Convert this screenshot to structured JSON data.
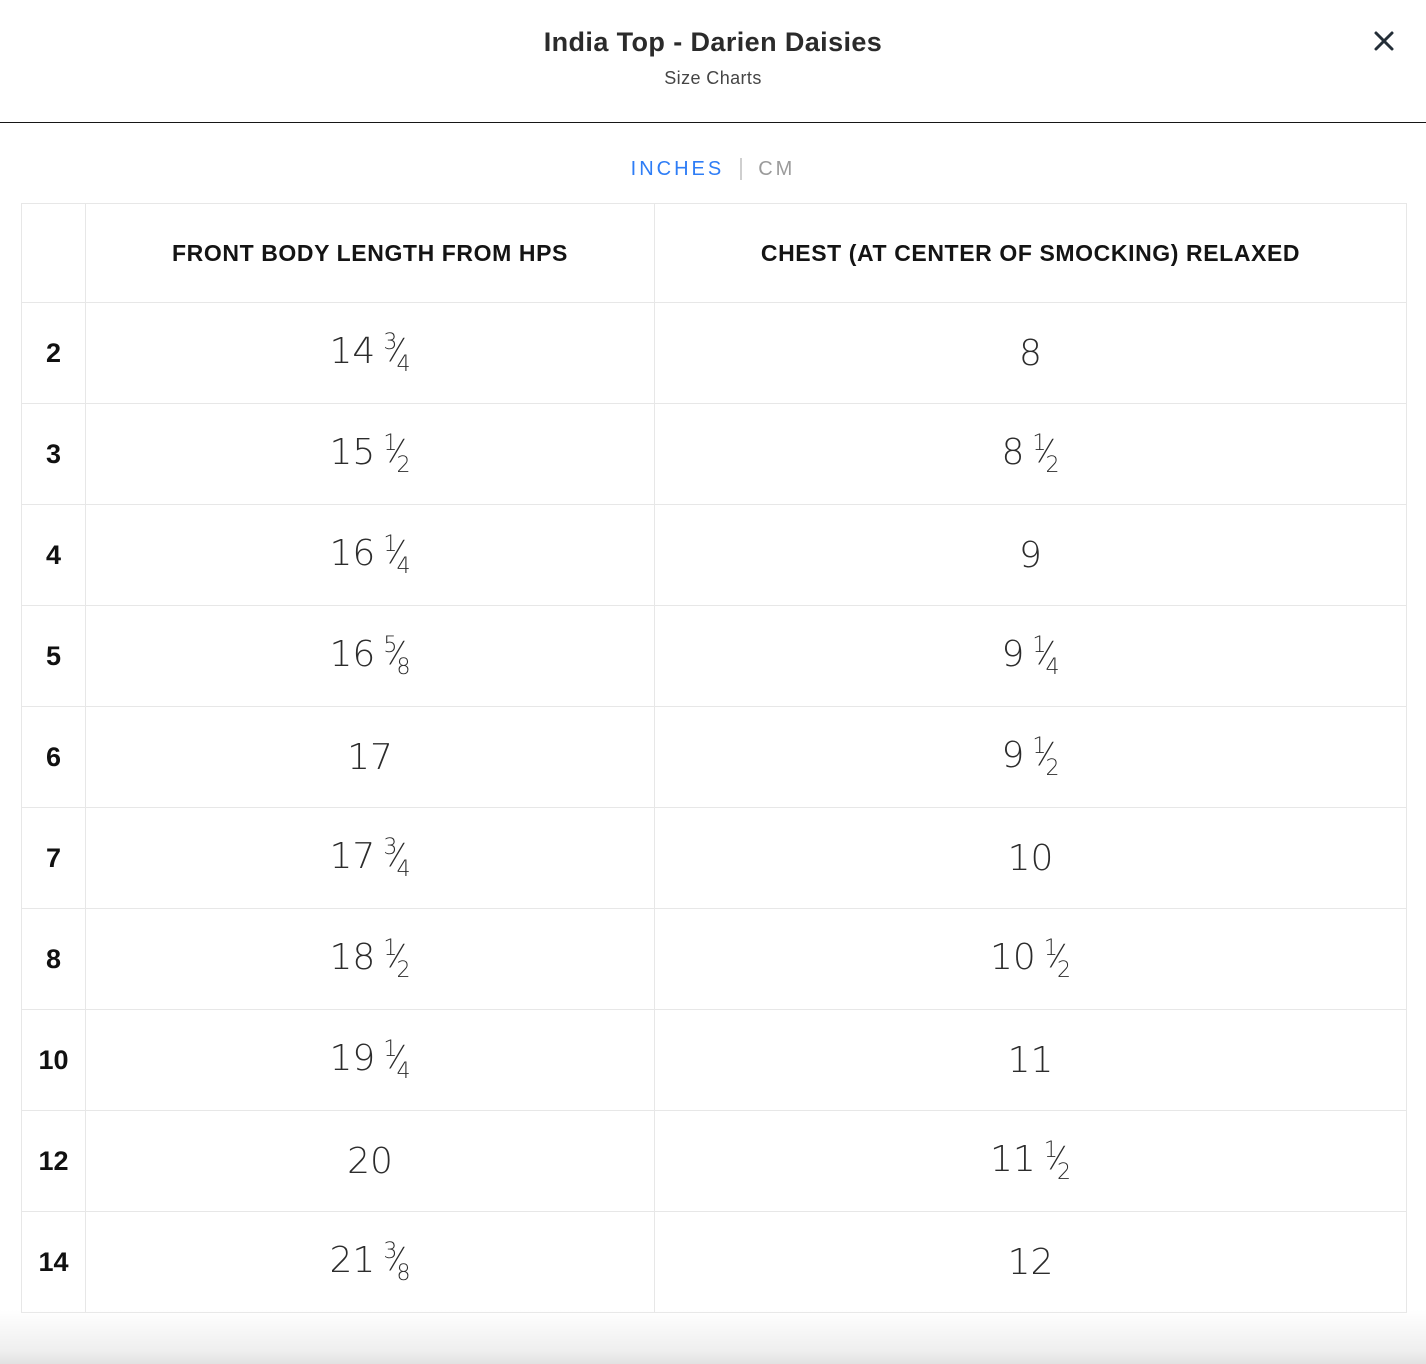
{
  "modal": {
    "title": "India Top - Darien Daisies",
    "subtitle": "Size Charts",
    "close_icon": "x-icon"
  },
  "unit_toggle": {
    "options": [
      {
        "label": "INCHES",
        "active": true
      },
      {
        "label": "CM",
        "active": false
      }
    ],
    "active_color": "#2e7df6",
    "inactive_color": "#9b9b9b"
  },
  "table": {
    "columns": [
      "",
      "FRONT BODY LENGTH FROM HPS",
      "CHEST (AT CENTER OF SMOCKING) RELAXED"
    ],
    "rows": [
      {
        "size": "2",
        "front_body_length": "14 3/4",
        "chest": "8"
      },
      {
        "size": "3",
        "front_body_length": "15 1/2",
        "chest": "8 1/2"
      },
      {
        "size": "4",
        "front_body_length": "16 1/4",
        "chest": "9"
      },
      {
        "size": "5",
        "front_body_length": "16 5/8",
        "chest": "9 1/4"
      },
      {
        "size": "6",
        "front_body_length": "17",
        "chest": "9 1/2"
      },
      {
        "size": "7",
        "front_body_length": "17 3/4",
        "chest": "10"
      },
      {
        "size": "8",
        "front_body_length": "18 1/2",
        "chest": "10 1/2"
      },
      {
        "size": "10",
        "front_body_length": "19 1/4",
        "chest": "11"
      },
      {
        "size": "12",
        "front_body_length": "20",
        "chest": "11 1/2"
      },
      {
        "size": "14",
        "front_body_length": "21 3/8",
        "chest": "12"
      }
    ]
  },
  "colors": {
    "header_divider": "#161616",
    "table_border": "#e7e7e7",
    "close_icon": "#242e38",
    "title_text": "#2b2b2b",
    "value_text": "#2c2c2c"
  }
}
